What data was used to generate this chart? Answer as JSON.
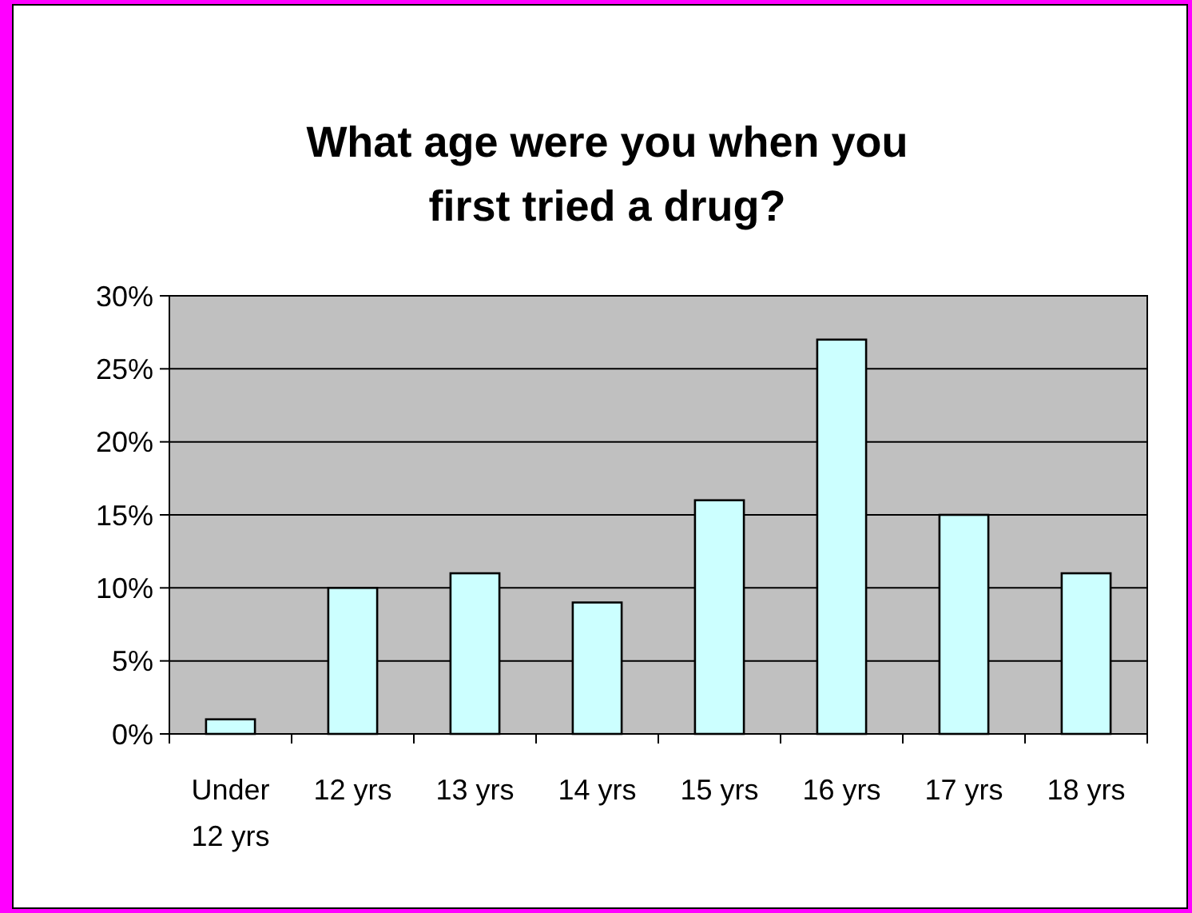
{
  "chart_data": {
    "type": "bar",
    "title": "What age were you when you first tried a drug?",
    "categories": [
      "Under 12 yrs",
      "12 yrs",
      "13 yrs",
      "14 yrs",
      "15 yrs",
      "16 yrs",
      "17 yrs",
      "18 yrs"
    ],
    "values": [
      1,
      10,
      11,
      9,
      16,
      27,
      15,
      11
    ],
    "color": "#ccffff",
    "ylim": [
      0,
      30
    ],
    "yticks": [
      {
        "value": 0,
        "label": "0%"
      },
      {
        "value": 5,
        "label": "5%"
      },
      {
        "value": 10,
        "label": "10%"
      },
      {
        "value": 15,
        "label": "15%"
      },
      {
        "value": 20,
        "label": "20%"
      },
      {
        "value": 25,
        "label": "25%"
      },
      {
        "value": 30,
        "label": "30%"
      }
    ],
    "grid": "y"
  }
}
